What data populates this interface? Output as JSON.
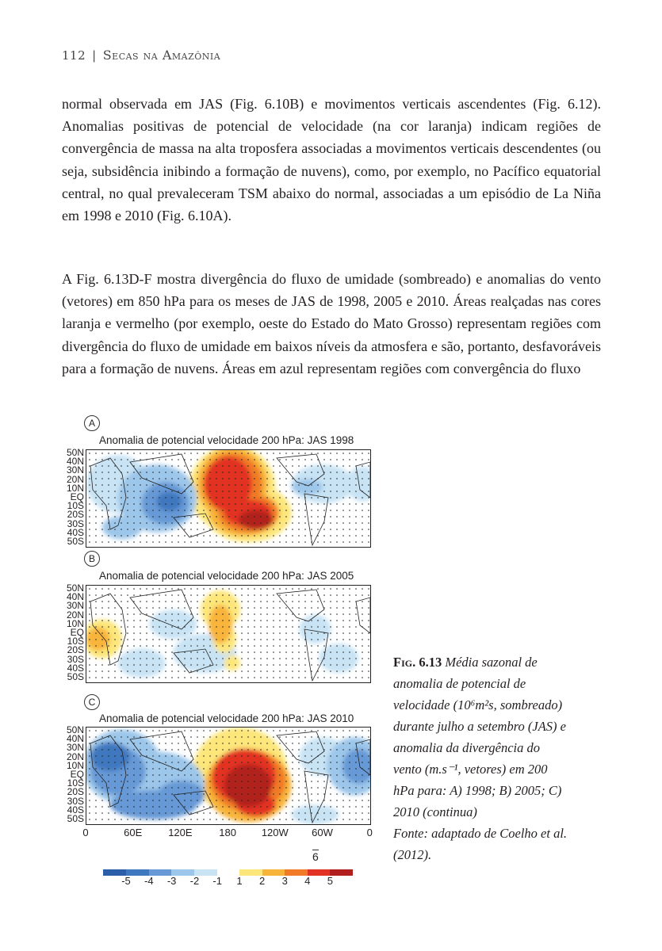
{
  "header": {
    "page_number": "112",
    "separator": "|",
    "book_title": "Secas na Amazônia"
  },
  "paragraphs": [
    "normal observada em JAS (Fig. 6.10B) e movimentos verticais ascendentes (Fig. 6.12). Anomalias positivas de potencial de velocidade (na cor laranja) indicam regiões de convergência de massa na alta troposfera associadas a movimentos verticais descendentes (ou seja, subsidência inibindo a formação de nuvens), como, por exemplo, no Pacífico equatorial central, no qual prevaleceram TSM abaixo do normal, associadas a um episódio de La Niña em 1998 e 2010 (Fig. 6.10A).",
    "A Fig. 6.13D-F mostra divergência do fluxo de umidade (sombreado) e anomalias do vento (vetores) em 850 hPa para os meses de JAS de 1998, 2005 e 2010. Áreas realçadas nas cores laranja e vermelho (por exemplo, oeste do Estado do Mato Grosso) representam regiões com divergência do fluxo de umidade em baixos níveis da atmosfera e são, portanto, desfavoráveis para a formação de nuvens. Áreas em azul representam regiões com convergência do fluxo"
  ],
  "figure": {
    "panels": [
      {
        "letter": "A",
        "title": "Anomalia de potencial velocidade 200 hPa: JAS 1998"
      },
      {
        "letter": "B",
        "title": "Anomalia de potencial velocidade 200 hPa: JAS 2005"
      },
      {
        "letter": "C",
        "title": "Anomalia de potencial velocidade 200 hPa: JAS 2010"
      }
    ],
    "lat_labels": [
      "50N",
      "40N",
      "30N",
      "20N",
      "10N",
      "EQ",
      "10S",
      "20S",
      "30S",
      "40S",
      "50S"
    ],
    "lon_labels": [
      "0",
      "60E",
      "120E",
      "180",
      "120W",
      "60W",
      "0"
    ],
    "vector_reference": "6",
    "colorbar": {
      "labels": [
        "-5",
        "-4",
        "-3",
        "-2",
        "-1",
        "1",
        "2",
        "3",
        "4",
        "5"
      ],
      "negative_colors": [
        "#2b5ea8",
        "#3f78bf",
        "#6699d6",
        "#9cc6ea",
        "#c8e3f4"
      ],
      "positive_colors": [
        "#fde67a",
        "#f8b43a",
        "#f07a26",
        "#e23224",
        "#b1201e"
      ]
    }
  },
  "caption": {
    "fig_number": "Fig. 6.13",
    "text": "Média sazonal de anomalia de potencial de velocidade (10⁶m²s, sombreado) durante julho a setembro (JAS) e anomalia da divergência do vento (m.s⁻¹, vetores) em 200 hPa para: A) 1998; B) 2005; C) 2010 (continua)",
    "source": "Fonte: adaptado de Coelho et al. (2012)."
  }
}
